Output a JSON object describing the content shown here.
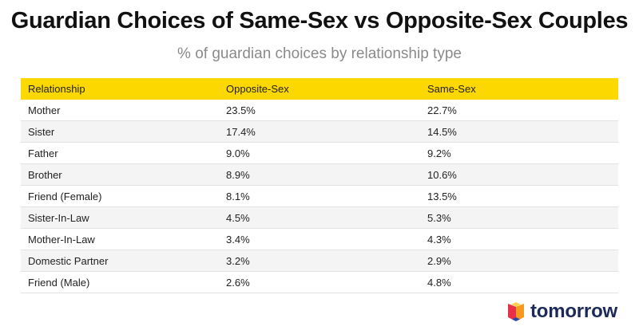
{
  "chart_data": {
    "type": "table",
    "title": "Guardian Choices of Same-Sex vs Opposite-Sex Couples",
    "subtitle": "% of guardian choices by relationship type",
    "columns": [
      "Relationship",
      "Opposite-Sex",
      "Same-Sex"
    ],
    "rows": [
      {
        "relationship": "Mother",
        "opposite_sex": "23.5%",
        "same_sex": "22.7%"
      },
      {
        "relationship": "Sister",
        "opposite_sex": "17.4%",
        "same_sex": "14.5%"
      },
      {
        "relationship": "Father",
        "opposite_sex": "9.0%",
        "same_sex": "9.2%"
      },
      {
        "relationship": "Brother",
        "opposite_sex": "8.9%",
        "same_sex": "10.6%"
      },
      {
        "relationship": "Friend (Female)",
        "opposite_sex": "8.1%",
        "same_sex": "13.5%"
      },
      {
        "relationship": "Sister-In-Law",
        "opposite_sex": "4.5%",
        "same_sex": "5.3%"
      },
      {
        "relationship": "Mother-In-Law",
        "opposite_sex": "3.4%",
        "same_sex": "4.3%"
      },
      {
        "relationship": "Domestic Partner",
        "opposite_sex": "3.2%",
        "same_sex": "2.9%"
      },
      {
        "relationship": "Friend (Male)",
        "opposite_sex": "2.6%",
        "same_sex": "4.8%"
      }
    ]
  },
  "brand": {
    "name": "tomorrow",
    "icon": "tomorrow-logo-icon",
    "colors": {
      "header": "#fcd700",
      "text": "#1c2a5a",
      "logo_red": "#e8304a",
      "logo_orange": "#f59a1f",
      "logo_yellow": "#fcd34d",
      "logo_blue": "#2b4aa8"
    }
  }
}
